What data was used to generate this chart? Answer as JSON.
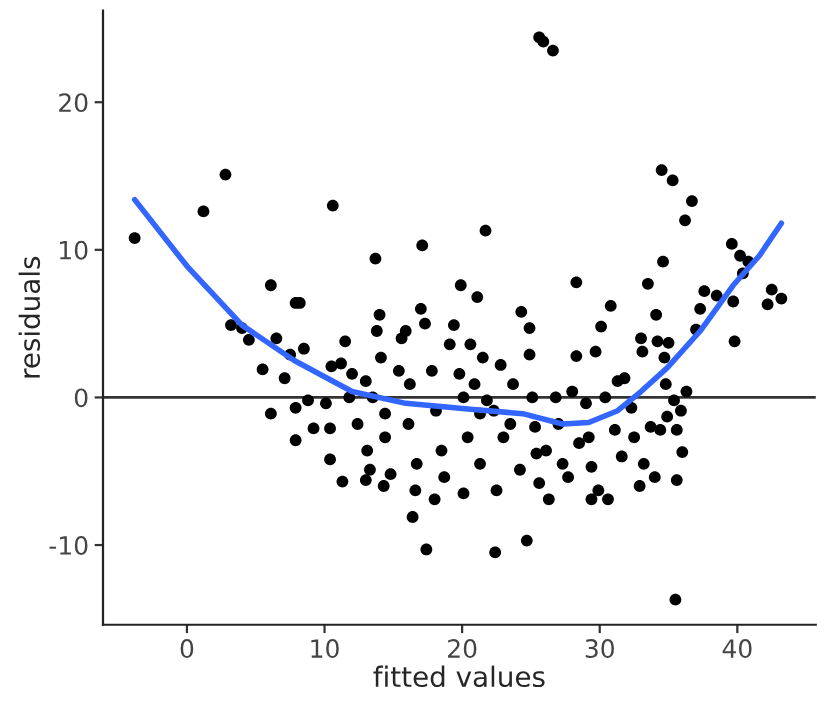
{
  "chart_data": {
    "type": "scatter",
    "xlabel": "fitted values",
    "ylabel": "residuals",
    "xlim": [
      -6.1,
      45.7
    ],
    "ylim": [
      -15.4,
      26.2
    ],
    "xticks": [
      0,
      10,
      20,
      30,
      40
    ],
    "yticks": [
      -10,
      0,
      10,
      20
    ],
    "grid": false,
    "legend": false,
    "marker": "circle",
    "ref_lines": [
      {
        "axis": "y",
        "value": 0,
        "color": "#333333"
      }
    ],
    "series": [
      {
        "color": "#000000",
        "x": [
          -3.8,
          1.2,
          2.8,
          10.6,
          3.2,
          4.0,
          4.5,
          5.5,
          6.1,
          6.1,
          6.5,
          7.1,
          7.5,
          7.9,
          8.2,
          8.5,
          7.9,
          7.9,
          8.8,
          9.2,
          10.1,
          10.5,
          10.4,
          10.4,
          11.3,
          11.5,
          11.2,
          11.8,
          12.0,
          12.4,
          13.0,
          13.1,
          13.3,
          13.0,
          13.7,
          14.0,
          13.8,
          14.1,
          13.5,
          14.4,
          14.4,
          14.3,
          14.8,
          15.4,
          15.6,
          15.9,
          16.2,
          16.1,
          16.4,
          16.6,
          16.7,
          17.0,
          17.1,
          17.4,
          17.3,
          17.8,
          18.0,
          18.1,
          18.5,
          18.7,
          19.1,
          19.4,
          19.9,
          19.8,
          20.1,
          20.1,
          20.4,
          20.6,
          20.9,
          21.1,
          21.3,
          21.3,
          21.5,
          21.7,
          21.8,
          22.3,
          22.4,
          22.5,
          22.8,
          23.0,
          23.5,
          23.7,
          24.2,
          24.3,
          24.7,
          24.9,
          24.9,
          25.1,
          25.3,
          25.4,
          25.6,
          25.9,
          26.6,
          25.6,
          26.1,
          26.3,
          26.8,
          27.0,
          27.3,
          27.7,
          28.0,
          28.3,
          28.3,
          28.5,
          29.0,
          29.2,
          29.4,
          29.4,
          29.7,
          29.9,
          30.1,
          30.4,
          30.6,
          30.8,
          31.1,
          31.3,
          31.6,
          31.8,
          32.3,
          32.5,
          32.9,
          33.0,
          33.1,
          33.2,
          33.5,
          33.7,
          34.0,
          34.1,
          34.2,
          34.4,
          34.6,
          34.7,
          34.5,
          34.8,
          34.9,
          35.0,
          35.3,
          35.4,
          35.5,
          35.6,
          35.6,
          35.9,
          36.0,
          36.2,
          36.3,
          36.7,
          37.0,
          37.3,
          37.6,
          38.5,
          39.6,
          39.7,
          39.8,
          40.2,
          40.4,
          40.8,
          42.2,
          42.5,
          43.2
        ],
        "values": [
          10.8,
          12.6,
          15.1,
          13.0,
          4.9,
          4.7,
          3.9,
          1.9,
          7.6,
          -1.1,
          4.0,
          1.3,
          2.9,
          6.4,
          6.4,
          3.3,
          -0.7,
          -2.9,
          -0.2,
          -2.1,
          -0.4,
          2.1,
          -2.1,
          -4.2,
          -5.7,
          3.8,
          2.3,
          0,
          1.6,
          -1.8,
          1.1,
          -3.6,
          -4.9,
          -5.6,
          9.4,
          5.6,
          4.5,
          2.7,
          0,
          -1.1,
          -2.7,
          -6.0,
          -5.2,
          1.8,
          4.0,
          4.5,
          0.9,
          -1.8,
          -8.1,
          -6.3,
          -4.5,
          6.0,
          10.3,
          -10.3,
          5.0,
          1.8,
          -6.9,
          -0.9,
          -3.6,
          -5.4,
          3.6,
          4.9,
          7.6,
          1.6,
          0,
          -6.5,
          -2.7,
          3.6,
          0.9,
          6.8,
          -1.1,
          -4.5,
          2.7,
          11.3,
          -0.2,
          -0.9,
          -10.5,
          -6.3,
          2.2,
          -2.7,
          -1.8,
          0.9,
          -4.9,
          5.8,
          -9.7,
          4.7,
          2.9,
          0,
          -2.0,
          -3.8,
          24.4,
          24.1,
          23.5,
          -5.8,
          -3.6,
          -6.9,
          0,
          -1.8,
          -4.5,
          -5.4,
          0.4,
          7.8,
          2.8,
          -3.1,
          -0.4,
          -2.7,
          -4.7,
          -6.9,
          3.1,
          -6.3,
          4.8,
          0,
          -6.9,
          6.2,
          -2.2,
          1.1,
          -4.0,
          1.3,
          -0.7,
          -2.7,
          -6.0,
          4.0,
          3.1,
          -4.5,
          7.7,
          -2.0,
          -5.4,
          5.6,
          3.8,
          -2.2,
          9.2,
          2.7,
          15.4,
          0.9,
          -1.3,
          3.7,
          14.7,
          -0.2,
          -13.7,
          -2.2,
          -5.6,
          -0.9,
          -3.7,
          12.0,
          0.4,
          13.3,
          4.6,
          6.0,
          7.2,
          6.9,
          10.4,
          6.5,
          3.8,
          9.6,
          8.4,
          9.2,
          6.3,
          7.3,
          6.7
        ]
      },
      {
        "type": "line",
        "color": "#3366ff",
        "marker": "none",
        "line_style": "solid",
        "x": [
          -3.8,
          0,
          4,
          7.8,
          12,
          15.9,
          20.6,
          24.4,
          27.3,
          29.2,
          31.3,
          33.0,
          34.9,
          37.3,
          39.7,
          41.6,
          43.2
        ],
        "values": [
          13.4,
          8.9,
          4.9,
          2.5,
          0.4,
          -0.4,
          -0.8,
          -1.1,
          -1.8,
          -1.7,
          -0.9,
          0.4,
          2.0,
          4.5,
          7.6,
          9.6,
          11.8
        ]
      }
    ]
  }
}
